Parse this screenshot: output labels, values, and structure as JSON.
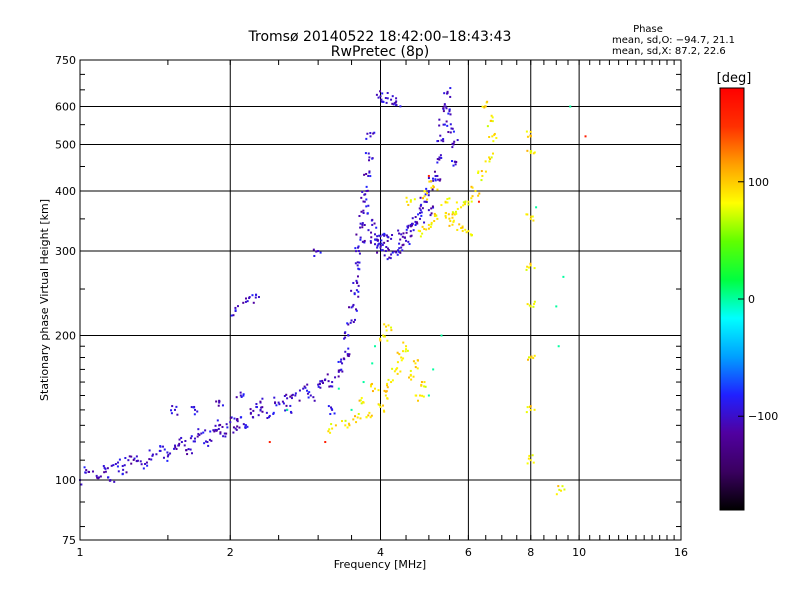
{
  "chart_data": {
    "type": "scatter",
    "title": "Tromsø 20140522 18:42:00–18:43:43",
    "subtitle": "RwPretec (8p)",
    "xlabel": "Frequency [MHz]",
    "ylabel": "Stationary phase Virtual Height [km]",
    "x_scale": "log2",
    "y_scale": "log",
    "xlim": [
      1,
      16
    ],
    "ylim": [
      75,
      750
    ],
    "x_ticks": [
      1,
      2,
      4,
      6,
      8,
      10,
      16
    ],
    "x_tick_labels": [
      "1",
      "2",
      "4",
      "6",
      "8",
      "10",
      "16"
    ],
    "y_ticks": [
      75,
      100,
      200,
      300,
      400,
      500,
      600,
      750
    ],
    "y_tick_labels": [
      "75",
      "100",
      "200",
      "300",
      "400",
      "500",
      "600",
      "750"
    ],
    "grid": true,
    "phase_stats": {
      "heading": "Phase",
      "line_o": "mean, sd,O: −94.7, 21.1",
      "line_x": "mean, sd,X:  87.2, 22.6"
    },
    "colorbar": {
      "unit_label": "[deg]",
      "range": [
        -180,
        180
      ],
      "ticks": [
        100,
        0,
        -100
      ],
      "tick_labels": [
        "100",
        "0",
        "−100"
      ],
      "colormap": [
        "#000000",
        "#3a0060",
        "#5000a0",
        "#2020ff",
        "#00a0ff",
        "#00ffff",
        "#00ff40",
        "#60ff00",
        "#ffff00",
        "#ffa000",
        "#ff3000",
        "#ff0000"
      ]
    },
    "series": [
      {
        "mode": "O",
        "phase": -100,
        "points": [
          [
            1.0,
            100
          ],
          [
            1.04,
            104
          ],
          [
            1.08,
            102
          ],
          [
            1.12,
            106
          ],
          [
            1.15,
            100
          ],
          [
            1.18,
            108
          ],
          [
            1.22,
            105
          ],
          [
            1.25,
            110
          ],
          [
            1.3,
            112
          ],
          [
            1.35,
            108
          ],
          [
            1.4,
            113
          ],
          [
            1.45,
            115
          ],
          [
            1.5,
            112
          ],
          [
            1.55,
            118
          ],
          [
            1.6,
            120
          ],
          [
            1.65,
            116
          ],
          [
            1.7,
            122
          ],
          [
            1.75,
            125
          ],
          [
            1.8,
            120
          ],
          [
            1.85,
            127
          ],
          [
            1.9,
            130
          ],
          [
            1.95,
            125
          ],
          [
            2.0,
            132
          ],
          [
            2.05,
            128
          ],
          [
            2.1,
            135
          ],
          [
            2.15,
            130
          ],
          [
            2.2,
            138
          ],
          [
            2.3,
            140
          ],
          [
            2.4,
            136
          ],
          [
            2.5,
            145
          ],
          [
            2.6,
            148
          ],
          [
            2.7,
            150
          ],
          [
            2.8,
            155
          ],
          [
            2.9,
            150
          ],
          [
            3.0,
            158
          ],
          [
            3.1,
            162
          ],
          [
            3.2,
            160
          ],
          [
            3.3,
            168
          ],
          [
            3.35,
            175
          ],
          [
            3.4,
            185
          ],
          [
            3.45,
            200
          ],
          [
            3.5,
            215
          ],
          [
            3.52,
            230
          ],
          [
            3.55,
            245
          ],
          [
            3.58,
            260
          ],
          [
            3.6,
            280
          ],
          [
            3.62,
            300
          ],
          [
            3.65,
            320
          ],
          [
            3.68,
            340
          ],
          [
            3.7,
            360
          ],
          [
            3.72,
            380
          ],
          [
            3.75,
            400
          ],
          [
            3.78,
            430
          ],
          [
            3.8,
            470
          ],
          [
            3.82,
            520
          ],
          [
            3.85,
            340
          ],
          [
            3.9,
            325
          ],
          [
            3.95,
            315
          ],
          [
            4.0,
            305
          ],
          [
            4.1,
            300
          ],
          [
            4.2,
            295
          ],
          [
            4.3,
            298
          ],
          [
            4.4,
            305
          ],
          [
            4.5,
            315
          ],
          [
            4.6,
            330
          ],
          [
            4.7,
            345
          ],
          [
            4.8,
            360
          ],
          [
            4.9,
            380
          ],
          [
            5.0,
            400
          ],
          [
            5.1,
            420
          ],
          [
            3.9,
            310
          ],
          [
            4.0,
            322
          ],
          [
            4.2,
            318
          ],
          [
            4.4,
            325
          ],
          [
            4.6,
            340
          ],
          [
            4.8,
            350
          ],
          [
            5.0,
            365
          ],
          [
            5.2,
            430
          ],
          [
            5.25,
            470
          ],
          [
            5.3,
            510
          ],
          [
            5.35,
            550
          ],
          [
            5.4,
            600
          ],
          [
            5.45,
            640
          ],
          [
            5.5,
            590
          ],
          [
            5.55,
            540
          ],
          [
            5.6,
            500
          ],
          [
            5.65,
            460
          ],
          [
            4.0,
            630
          ],
          [
            4.1,
            625
          ],
          [
            4.2,
            620
          ],
          [
            4.3,
            615
          ],
          [
            3.0,
            300
          ],
          [
            2.05,
            225
          ],
          [
            2.15,
            235
          ],
          [
            2.25,
            240
          ],
          [
            1.55,
            140
          ],
          [
            1.7,
            140
          ],
          [
            1.9,
            145
          ],
          [
            2.1,
            150
          ],
          [
            2.3,
            145
          ],
          [
            2.6,
            140
          ],
          [
            3.2,
            140
          ]
        ]
      },
      {
        "mode": "X",
        "phase": 90,
        "points": [
          [
            3.2,
            128
          ],
          [
            3.4,
            130
          ],
          [
            3.6,
            135
          ],
          [
            3.8,
            138
          ],
          [
            4.0,
            142
          ],
          [
            4.1,
            150
          ],
          [
            4.2,
            160
          ],
          [
            4.3,
            170
          ],
          [
            4.4,
            180
          ],
          [
            4.5,
            190
          ],
          [
            4.6,
            165
          ],
          [
            4.7,
            175
          ],
          [
            4.8,
            150
          ],
          [
            4.9,
            160
          ],
          [
            3.7,
            145
          ],
          [
            3.9,
            155
          ],
          [
            4.05,
            200
          ],
          [
            4.15,
            210
          ],
          [
            4.8,
            330
          ],
          [
            5.0,
            340
          ],
          [
            5.2,
            350
          ],
          [
            5.4,
            355
          ],
          [
            5.6,
            360
          ],
          [
            5.8,
            370
          ],
          [
            6.0,
            380
          ],
          [
            6.2,
            400
          ],
          [
            6.4,
            430
          ],
          [
            6.6,
            470
          ],
          [
            6.7,
            520
          ],
          [
            6.65,
            560
          ],
          [
            6.5,
            600
          ],
          [
            4.6,
            380
          ],
          [
            4.9,
            390
          ],
          [
            5.1,
            410
          ],
          [
            5.4,
            380
          ],
          [
            5.6,
            345
          ],
          [
            5.8,
            335
          ],
          [
            6.0,
            330
          ],
          [
            8.0,
            520
          ],
          [
            8.0,
            480
          ],
          [
            8.0,
            350
          ],
          [
            8.0,
            280
          ],
          [
            8.0,
            230
          ],
          [
            8.0,
            180
          ],
          [
            8.0,
            140
          ],
          [
            8.0,
            110
          ],
          [
            9.2,
            95
          ]
        ]
      },
      {
        "mode": "noise",
        "phase": 0,
        "points": [
          [
            3.3,
            155
          ],
          [
            3.5,
            140
          ],
          [
            3.7,
            160
          ],
          [
            3.85,
            175
          ],
          [
            5.1,
            170
          ],
          [
            5.3,
            200
          ],
          [
            9.3,
            265
          ],
          [
            9.6,
            600
          ],
          [
            9.0,
            230
          ],
          [
            8.2,
            370
          ],
          [
            9.1,
            190
          ],
          [
            2.6,
            140
          ],
          [
            5.0,
            150
          ],
          [
            3.9,
            190
          ]
        ]
      },
      {
        "mode": "noise-warm",
        "phase": 160,
        "points": [
          [
            10.3,
            520
          ],
          [
            5.0,
            430
          ],
          [
            6.3,
            380
          ],
          [
            3.1,
            120
          ],
          [
            2.4,
            120
          ]
        ]
      }
    ]
  }
}
